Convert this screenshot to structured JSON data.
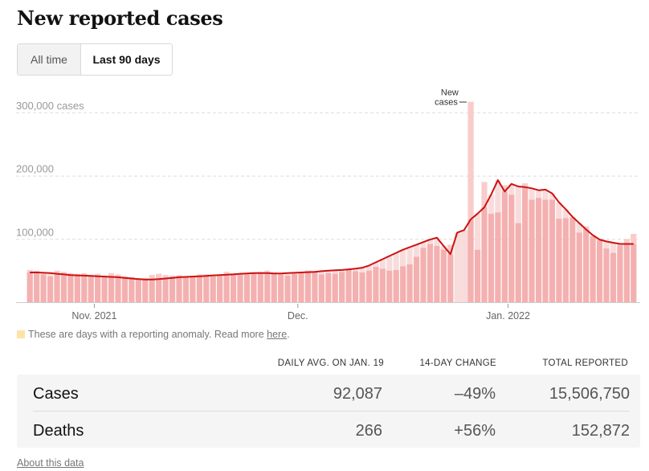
{
  "header": {
    "title": "New reported cases"
  },
  "toggle": {
    "options": [
      {
        "label": "All time",
        "active": false
      },
      {
        "label": "Last 90 days",
        "active": true
      }
    ]
  },
  "legend": {
    "text": "These are days with a reporting anomaly. Read more ",
    "link": "here",
    "suffix": ".",
    "color": "#fde3a7"
  },
  "colors": {
    "bar": "#f4b0b0",
    "bar_above_avg": "#f9cccc",
    "anomaly_bar": "#f8dcdc",
    "line": "#cc1111",
    "grid": "#dddddd"
  },
  "chart_data": {
    "type": "bar",
    "title": "New reported cases",
    "ylabel": "cases",
    "ylim": [
      0,
      330000
    ],
    "yticks": [
      {
        "value": 100000,
        "label": "100,000"
      },
      {
        "value": 200000,
        "label": "200,000"
      },
      {
        "value": 300000,
        "label": "300,000 cases"
      }
    ],
    "xticks": [
      {
        "index": 10,
        "label": "Nov. 2021"
      },
      {
        "index": 40,
        "label": "Dec."
      },
      {
        "index": 71,
        "label": "Jan. 2022"
      }
    ],
    "x_start": "Oct. 22, 2021",
    "x_end": "Jan. 19, 2022",
    "grid": true,
    "annotation": {
      "text_line1": "New",
      "text_line2": "cases",
      "index": 65
    },
    "anomaly_indices": [
      63,
      64
    ],
    "series": [
      {
        "name": "New cases",
        "kind": "bar",
        "values": [
          51000,
          50000,
          44000,
          41000,
          50000,
          48000,
          46000,
          45000,
          46000,
          43000,
          45000,
          42000,
          46000,
          44000,
          41000,
          40000,
          38000,
          38000,
          43000,
          45000,
          43000,
          42000,
          43000,
          40000,
          42000,
          44000,
          44000,
          41000,
          44000,
          48000,
          46000,
          45000,
          44000,
          46000,
          48000,
          50000,
          47000,
          44000,
          42000,
          45000,
          48000,
          50000,
          48000,
          44000,
          46000,
          45000,
          48000,
          52000,
          49000,
          47000,
          50000,
          56000,
          53000,
          50000,
          51000,
          57000,
          60000,
          72000,
          86000,
          92000,
          89000,
          83000,
          91000,
          76000,
          76000,
          317000,
          83000,
          190000,
          140000,
          142000,
          185000,
          170000,
          125000,
          188000,
          162000,
          165000,
          162000,
          162000,
          132000,
          133000,
          134000,
          110000,
          120000,
          104000,
          98000,
          85000,
          78000,
          90000,
          100000,
          108000
        ]
      },
      {
        "name": "7-day average",
        "kind": "line",
        "values": [
          47000,
          47000,
          46500,
          46000,
          45000,
          44000,
          43000,
          42500,
          42000,
          41500,
          41000,
          40500,
          40000,
          39500,
          38500,
          37500,
          36500,
          36000,
          36000,
          36500,
          37500,
          38500,
          39500,
          40000,
          40500,
          41000,
          41500,
          42500,
          43000,
          43500,
          44000,
          45000,
          45500,
          46000,
          46000,
          46000,
          45500,
          45500,
          46000,
          46500,
          47000,
          47500,
          48000,
          49000,
          50000,
          50500,
          51000,
          52000,
          53000,
          54500,
          58000,
          63000,
          68000,
          73000,
          78000,
          83000,
          87000,
          91000,
          95000,
          99000,
          102000,
          89000,
          76000,
          110000,
          114000,
          131000,
          140000,
          150000,
          170000,
          193000,
          175000,
          187000,
          183000,
          182000,
          180000,
          177000,
          178000,
          172000,
          158000,
          147000,
          135000,
          125000,
          115000,
          106000,
          99000,
          96000,
          94000,
          92087,
          92087,
          92087
        ]
      }
    ]
  },
  "table": {
    "headers": {
      "daily_avg": "Daily avg. on Jan. 19",
      "change": "14-day change",
      "total": "Total reported"
    },
    "rows": [
      {
        "label": "Cases",
        "daily_avg": "92,087",
        "change": "–49%",
        "total": "15,506,750"
      },
      {
        "label": "Deaths",
        "daily_avg": "266",
        "change": "+56%",
        "total": "152,872"
      }
    ]
  },
  "footer": {
    "about_link": "About this data"
  }
}
